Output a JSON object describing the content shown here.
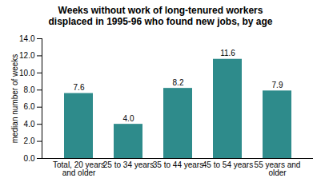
{
  "chart_data": {
    "type": "bar",
    "title": "Weeks without work of long-tenured workers displaced in 1995-96 who found new jobs, by age",
    "y_label": "median number of weeks",
    "categories": [
      "Total, 20 years and older",
      "25 to 34 years",
      "35 to 44 years",
      "45 to 54 years",
      "55 years and older"
    ],
    "values": [
      7.6,
      4.0,
      8.2,
      11.6,
      7.9
    ],
    "value_labels": [
      "7.6",
      "4.0",
      "8.2",
      "11.6",
      "7.9"
    ],
    "color": "#2e8b8b",
    "ylim": [
      0,
      14
    ],
    "yticks": [
      {
        "value": 0,
        "label": "0.0"
      },
      {
        "value": 2,
        "label": "2.0"
      },
      {
        "value": 4,
        "label": "4.0"
      },
      {
        "value": 6,
        "label": "6.0"
      },
      {
        "value": 8,
        "label": "8.0"
      },
      {
        "value": 10,
        "label": "10.0"
      },
      {
        "value": 12,
        "label": "12.0"
      },
      {
        "value": 14,
        "label": "14.0"
      }
    ],
    "grid": false,
    "data_labels": true
  }
}
